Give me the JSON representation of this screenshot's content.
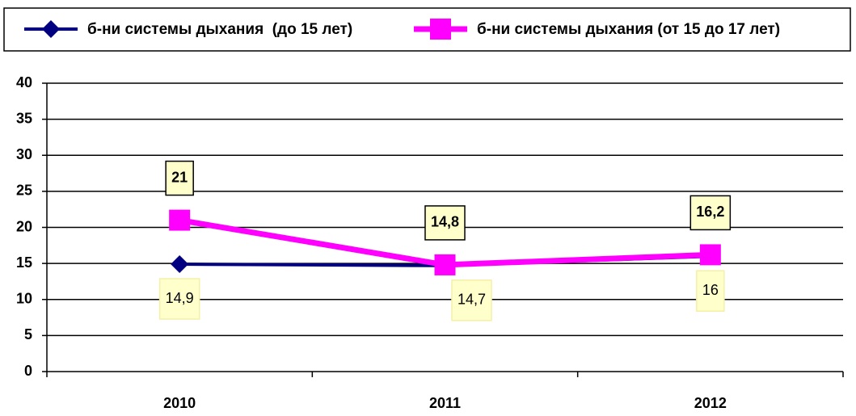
{
  "chart_data": {
    "type": "line",
    "categories": [
      "2010",
      "2011",
      "2012"
    ],
    "series": [
      {
        "name": "б-ни системы дыхания  (до 15 лет)",
        "color": "#000080",
        "marker": "diamond",
        "values": [
          14.9,
          14.7,
          16
        ],
        "value_labels": [
          "14,9",
          "14,7",
          "16"
        ]
      },
      {
        "name": "б-ни системы дыхания (от 15 до 17 лет)",
        "color": "#ff00ff",
        "marker": "square",
        "values": [
          21,
          14.8,
          16.2
        ],
        "value_labels": [
          "21",
          "14,8",
          "16,2"
        ]
      }
    ],
    "ylim": [
      0,
      40
    ],
    "yticks": [
      0,
      5,
      10,
      15,
      20,
      25,
      30,
      35,
      40
    ],
    "grid": true,
    "legend": "top"
  }
}
